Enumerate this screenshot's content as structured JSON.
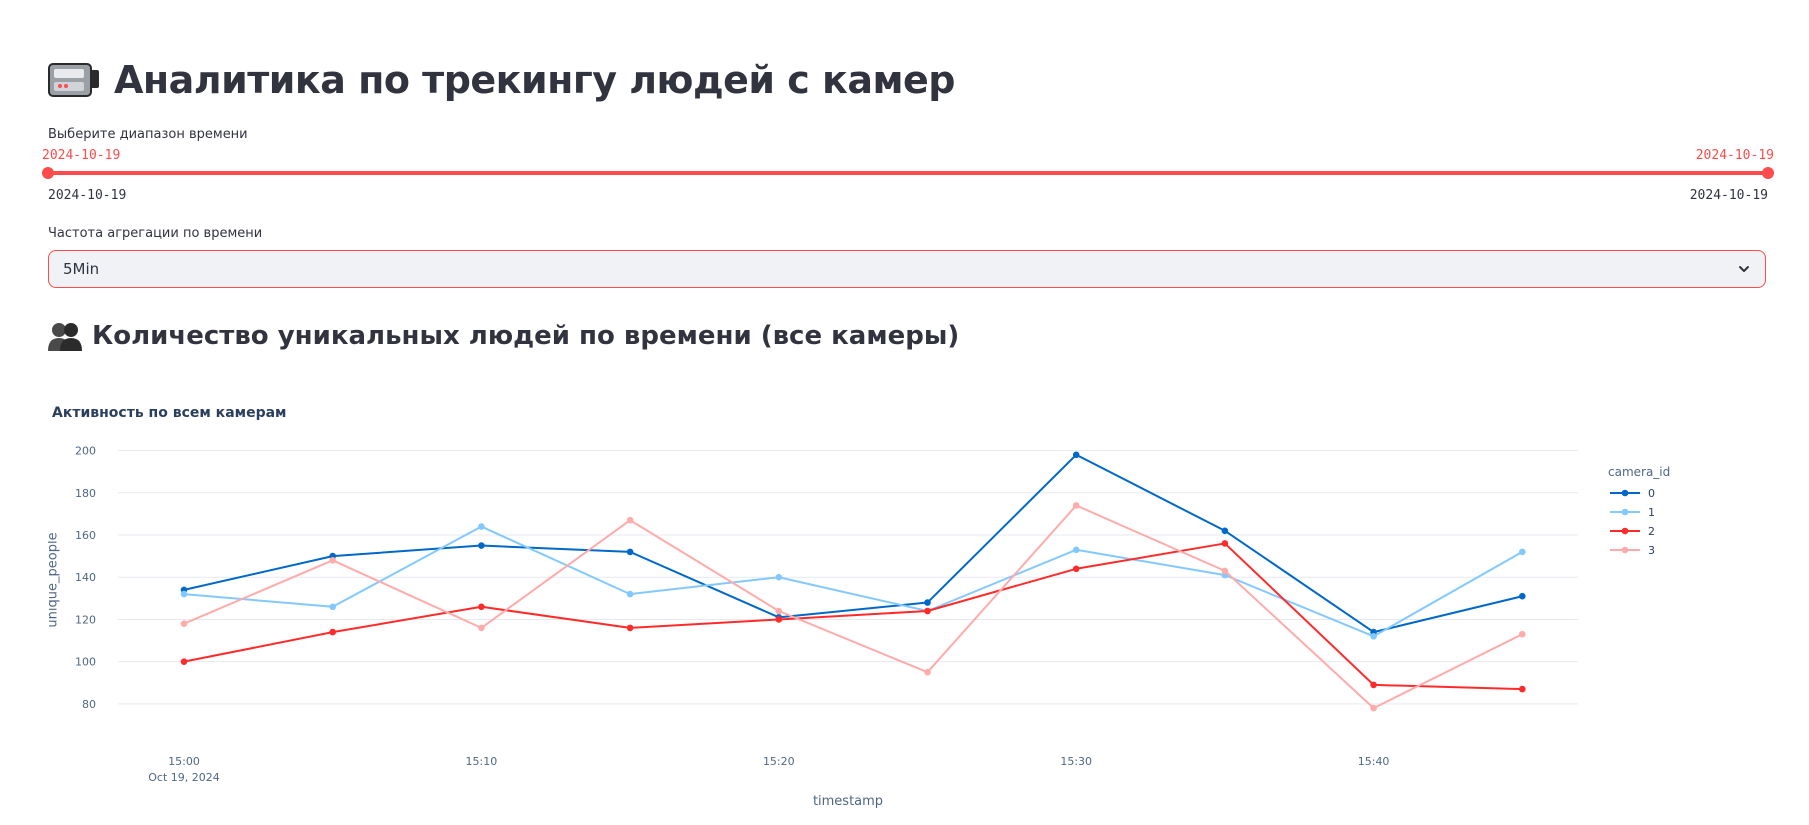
{
  "page": {
    "title": "Аналитика по трекингу людей с камер",
    "title_icon": "video-camera-icon"
  },
  "time_range": {
    "label": "Выберите диапазон времени",
    "start": "2024-10-19",
    "end": "2024-10-19",
    "min": "2024-10-19",
    "max": "2024-10-19"
  },
  "aggregation": {
    "label": "Частота агрегации по времени",
    "value": "5Min"
  },
  "section": {
    "title": "Количество уникальных людей по времени (все камеры)",
    "icon": "people-silhouette-icon"
  },
  "colors": {
    "accent": "#ff4b4b",
    "series_0": "#0068c9",
    "series_1": "#83c9ff",
    "series_2": "#ff2b2b",
    "series_3": "#ffabab"
  },
  "chart_data": {
    "type": "line",
    "title": "Активность по всем камерам",
    "xlabel": "timestamp",
    "ylabel": "unique_people",
    "x": [
      "15:00",
      "15:05",
      "15:10",
      "15:15",
      "15:20",
      "15:25",
      "15:30",
      "15:35",
      "15:40",
      "15:45"
    ],
    "x_ticks": [
      "15:00",
      "15:10",
      "15:20",
      "15:30",
      "15:40"
    ],
    "x_tick_sublabel": "Oct 19, 2024",
    "y_ticks": [
      80,
      100,
      120,
      140,
      160,
      180,
      200
    ],
    "ylim": [
      70,
      205
    ],
    "legend_title": "camera_id",
    "legend_position": "top-right",
    "grid": true,
    "series": [
      {
        "name": "0",
        "color": "#0068c9",
        "values": [
          134,
          150,
          155,
          152,
          121,
          128,
          198,
          162,
          114,
          131
        ]
      },
      {
        "name": "1",
        "color": "#83c9ff",
        "values": [
          132,
          126,
          164,
          132,
          140,
          124,
          153,
          141,
          112,
          152
        ]
      },
      {
        "name": "2",
        "color": "#ff2b2b",
        "values": [
          100,
          114,
          126,
          116,
          120,
          124,
          144,
          156,
          89,
          87
        ]
      },
      {
        "name": "3",
        "color": "#ffabab",
        "values": [
          118,
          148,
          116,
          167,
          124,
          95,
          174,
          143,
          78,
          113
        ]
      }
    ]
  }
}
